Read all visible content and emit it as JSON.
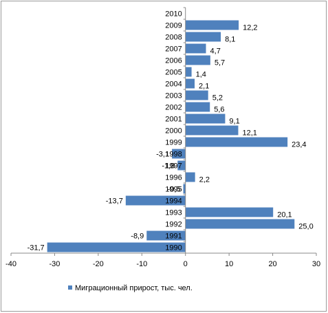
{
  "chart_data": {
    "type": "bar",
    "orientation": "horizontal",
    "categories": [
      "2010",
      "2009",
      "2008",
      "2007",
      "2006",
      "2005",
      "2004",
      "2003",
      "2002",
      "2001",
      "2000",
      "1999",
      "1998",
      "1997",
      "1996",
      "1995",
      "1994",
      "1993",
      "1992",
      "1991",
      "1990"
    ],
    "series": [
      {
        "name": "Миграционный прирост, тыс. чел.",
        "values": [
          null,
          12.2,
          8.1,
          4.7,
          5.7,
          1.4,
          2.1,
          5.2,
          5.6,
          9.1,
          12.1,
          23.4,
          -3.1,
          -1.8,
          2.2,
          -0.5,
          -13.7,
          20.1,
          25.0,
          -8.9,
          -31.7
        ],
        "value_labels": [
          "",
          "12,2",
          "8,1",
          "4,7",
          "5,7",
          "1,4",
          "2,1",
          "5,2",
          "5,6",
          "9,1",
          "12,1",
          "23,4",
          "-3,1",
          "-1,8",
          "2,2",
          "-0,5",
          "-13,7",
          "20,1",
          "25,0",
          "-8,9",
          "-31,7"
        ],
        "color": "#4f81bd"
      }
    ],
    "xlim": [
      -40,
      30
    ],
    "xticks": [
      -40,
      -30,
      -20,
      -10,
      0,
      10,
      20,
      30
    ],
    "xlabel": "",
    "ylabel": "",
    "title": "",
    "grid": false,
    "legend_position": "bottom",
    "colors": {
      "bar": "#4f81bd",
      "axis": "#888888",
      "border": "#9a9a9a",
      "text": "#000000"
    }
  }
}
